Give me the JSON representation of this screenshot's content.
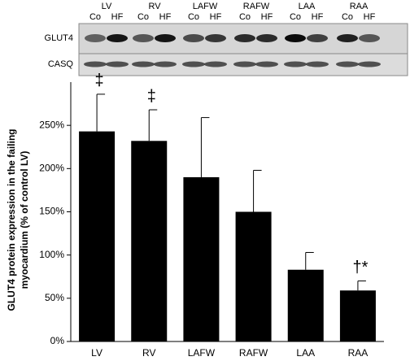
{
  "blot": {
    "lanes": [
      "LV",
      "RV",
      "LAFW",
      "RAFW",
      "LAA",
      "RAA"
    ],
    "sublanes": [
      "Co",
      "HF"
    ],
    "rows": [
      "GLUT4",
      "CASQ"
    ]
  },
  "chart_data": {
    "type": "bar",
    "ylabel": [
      "GLUT4 protein expression in the failing",
      "myocardium (% of control LV)"
    ],
    "categories": [
      "LV",
      "RV",
      "LAFW",
      "RAFW",
      "LAA",
      "RAA"
    ],
    "values": [
      243,
      232,
      190,
      150,
      83,
      59
    ],
    "errors": [
      43,
      36,
      69,
      48,
      20,
      11
    ],
    "color": "#000000",
    "ylim": [
      0,
      300
    ],
    "yticks": [
      {
        "value": 0,
        "label": "0%"
      },
      {
        "value": 50,
        "label": "50%"
      },
      {
        "value": 100,
        "label": "100%"
      },
      {
        "value": 150,
        "label": "150%"
      },
      {
        "value": 200,
        "label": "200%"
      },
      {
        "value": 250,
        "label": "250%"
      }
    ],
    "annotations": [
      {
        "text": "‡",
        "category": "LV"
      },
      {
        "text": "‡",
        "category": "RV"
      },
      {
        "text": "†*",
        "category": "RAA"
      }
    ]
  }
}
